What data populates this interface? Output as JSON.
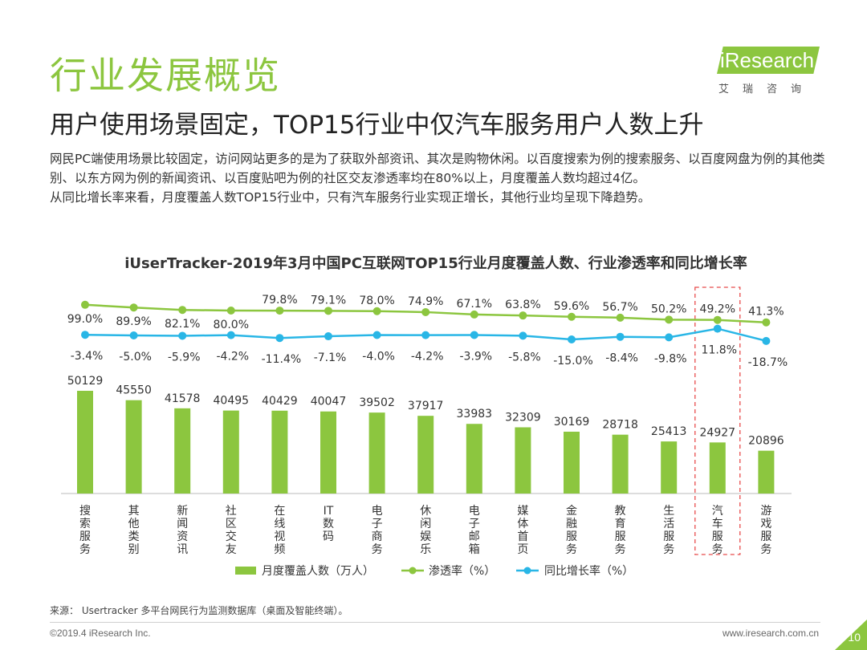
{
  "page": {
    "title": "行业发展概览",
    "subtitle": "用户使用场景固定，TOP15行业中仅汽车服务用户人数上升",
    "description": [
      "网民PC端使用场景比较固定，访问网站更多的是为了获取外部资讯、其次是购物休闲。以百度搜索为例的搜索服务、以百度网盘为例的其他类别、以东方网为例的新闻资讯、以百度贴吧为例的社区交友渗透率均在80%以上，月度覆盖人数均超过4亿。",
      "从同比增长率来看，月度覆盖人数TOP15行业中，只有汽车服务行业实现正增长，其他行业均呈现下降趋势。"
    ],
    "source": "来源： Usertracker 多平台网民行为监测数据库（桌面及智能终端）。",
    "copyright": "©2019.4 iResearch Inc.",
    "website": "www.iresearch.com.cn",
    "page_number": "10"
  },
  "logo": {
    "name": "iResearch",
    "sub": "艾瑞咨询"
  },
  "colors": {
    "accent": "#8cc63f",
    "line_growth": "#29b6e6",
    "highlight_box": "#e84c4c"
  },
  "chart_data": {
    "type": "bar",
    "title": "iUserTracker-2019年3月中国PC互联网TOP15行业月度覆盖人数、行业渗透率和同比增长率",
    "categories": [
      "搜索服务",
      "其他类别",
      "新闻资讯",
      "社区交友",
      "在线视频",
      "IT数码",
      "电子商务",
      "休闲娱乐",
      "电子邮箱",
      "媒体首页",
      "金融服务",
      "教育服务",
      "生活服务",
      "汽车服务",
      "游戏服务"
    ],
    "series": [
      {
        "name": "月度覆盖人数（万人）",
        "type": "bar",
        "values": [
          50129,
          45550,
          41578,
          40495,
          40429,
          40047,
          39502,
          37917,
          33983,
          32309,
          30169,
          28718,
          25413,
          24927,
          20896
        ]
      },
      {
        "name": "渗透率（%）",
        "type": "line",
        "values": [
          99.0,
          89.9,
          82.1,
          80.0,
          79.8,
          79.1,
          78.0,
          74.9,
          67.1,
          63.8,
          59.6,
          56.7,
          50.2,
          49.2,
          41.3
        ]
      },
      {
        "name": "同比增长率（%）",
        "type": "line",
        "values": [
          -3.4,
          -5.0,
          -5.9,
          -4.2,
          -11.4,
          -7.1,
          -4.0,
          -4.2,
          -3.9,
          -5.8,
          -15.0,
          -8.4,
          -9.8,
          11.8,
          -18.7
        ]
      }
    ],
    "highlight_category": "汽车服务",
    "legend_position": "bottom",
    "grid": false
  }
}
